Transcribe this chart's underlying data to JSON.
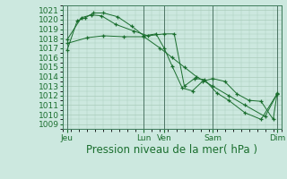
{
  "bg_color": "#cce8df",
  "grid_color": "#aaccbb",
  "line_color": "#1a6e2e",
  "xlabel": "Pression niveau de la mer( hPa )",
  "xlabel_fontsize": 8.5,
  "tick_fontsize": 6.5,
  "ylim": [
    1008.5,
    1021.5
  ],
  "yticks": [
    1009,
    1010,
    1011,
    1012,
    1013,
    1014,
    1015,
    1016,
    1017,
    1018,
    1019,
    1020,
    1021
  ],
  "xlim": [
    0,
    108
  ],
  "xtick_positions": [
    2,
    40,
    50,
    74,
    106
  ],
  "xtick_labels": [
    "Jeu",
    "Lun",
    "Ven",
    "Sam",
    "Dim"
  ],
  "vline_positions": [
    2,
    40,
    50,
    74,
    106
  ],
  "series1_x": [
    2,
    7,
    11,
    15,
    20,
    27,
    34,
    40,
    46,
    50,
    54,
    59,
    64,
    69,
    74,
    80,
    86,
    92,
    98,
    104,
    106
  ],
  "series1_y": [
    1016.8,
    1019.9,
    1020.2,
    1020.7,
    1020.7,
    1020.3,
    1019.3,
    1018.3,
    1018.5,
    1017.0,
    1015.1,
    1012.8,
    1012.5,
    1013.5,
    1013.8,
    1013.5,
    1012.2,
    1011.5,
    1011.4,
    1009.5,
    1012.3
  ],
  "series2_x": [
    2,
    9,
    14,
    19,
    26,
    35,
    42,
    50,
    55,
    60,
    65,
    70,
    76,
    82,
    90,
    98,
    106
  ],
  "series2_y": [
    1017.9,
    1020.2,
    1020.5,
    1020.4,
    1019.5,
    1018.8,
    1018.3,
    1018.5,
    1018.5,
    1013.0,
    1013.8,
    1013.7,
    1012.3,
    1011.5,
    1010.2,
    1009.5,
    1012.2
  ],
  "series3_x": [
    2,
    12,
    20,
    30,
    40,
    48,
    54,
    60,
    66,
    74,
    82,
    90,
    100,
    106
  ],
  "series3_y": [
    1017.5,
    1018.1,
    1018.3,
    1018.2,
    1018.2,
    1017.0,
    1016.0,
    1015.0,
    1014.0,
    1013.0,
    1012.0,
    1011.0,
    1009.8,
    1012.2
  ]
}
